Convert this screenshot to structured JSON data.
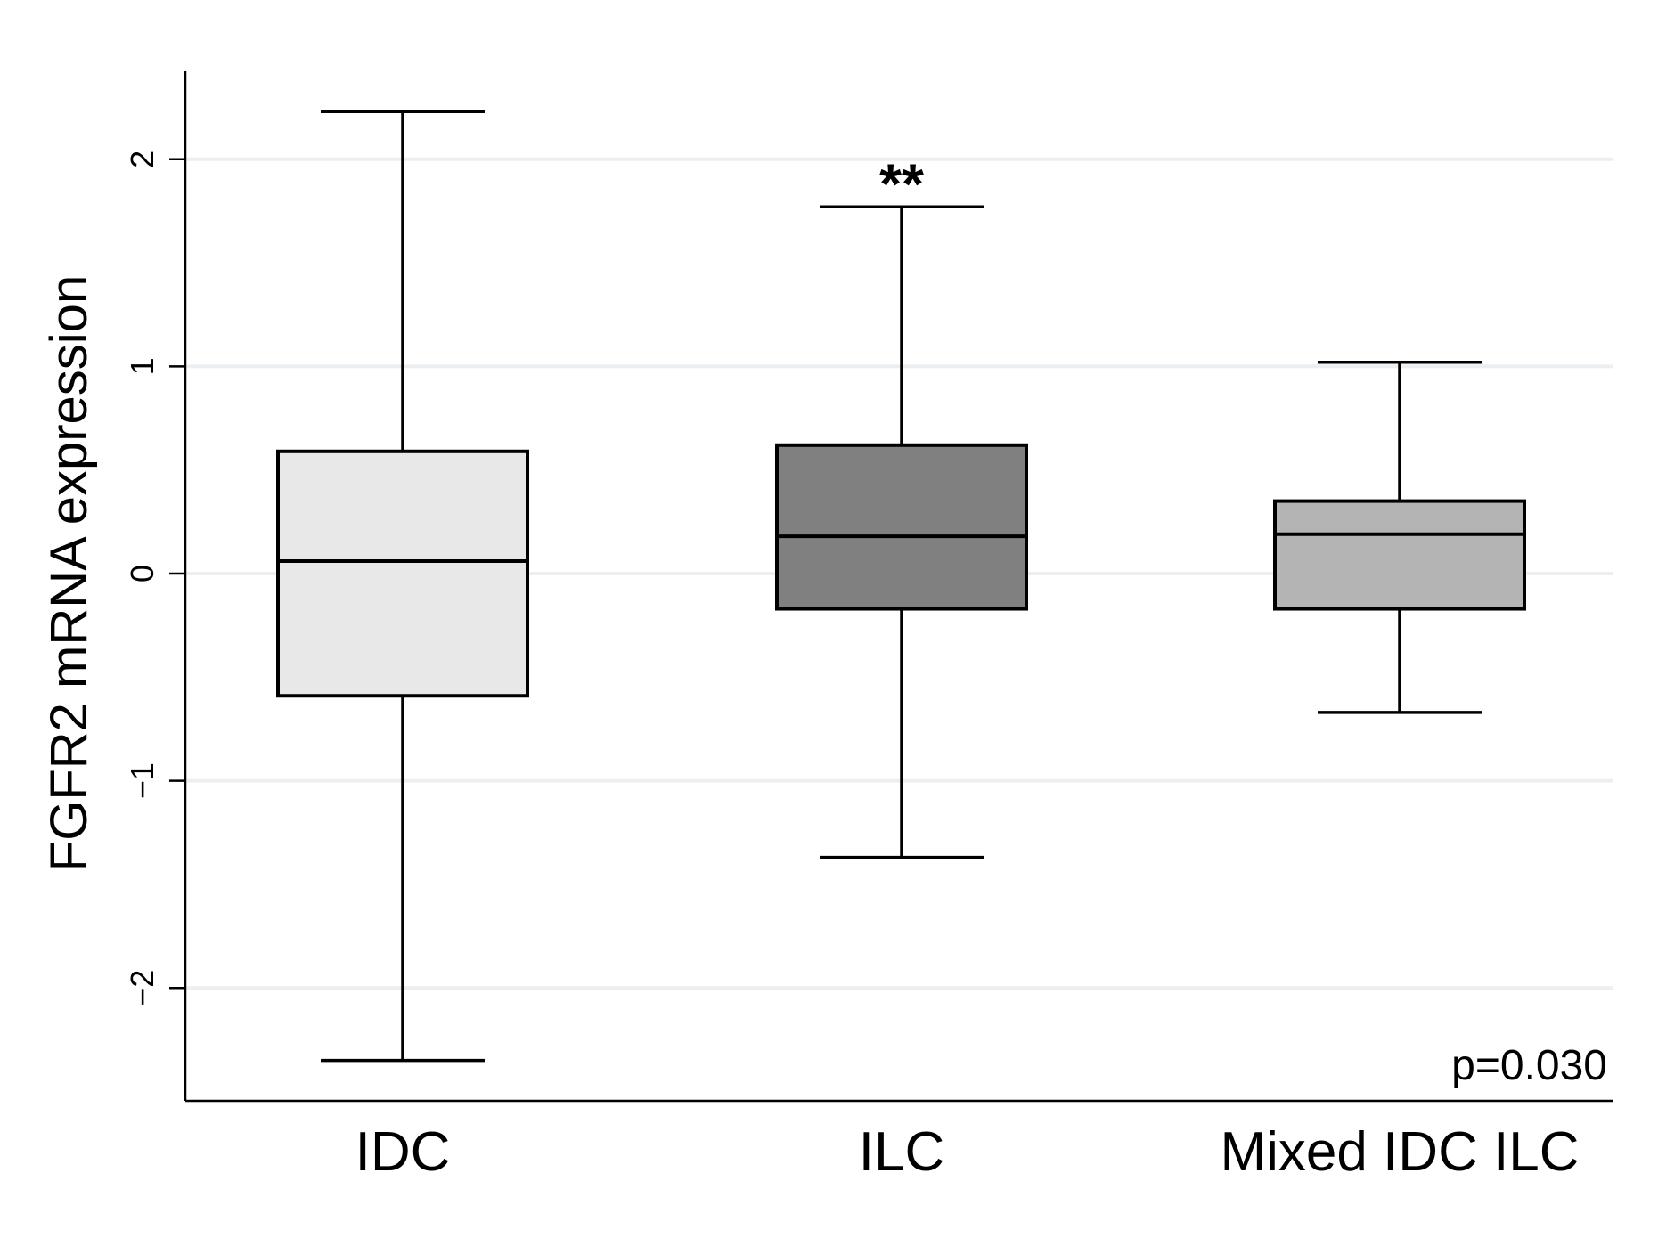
{
  "chart_data": {
    "type": "box",
    "title": "",
    "xlabel": "",
    "ylabel": "FGFR2 mRNA expression",
    "ylim": [
      -2.5,
      2.42
    ],
    "yticks": [
      -2,
      -1,
      0,
      1,
      2
    ],
    "ytick_labels": [
      "−2",
      "−1",
      "0",
      "1",
      "2"
    ],
    "grid": true,
    "categories": [
      "IDC",
      "ILC",
      "Mixed IDC ILC"
    ],
    "boxes": [
      {
        "name": "IDC",
        "whisker_low": -2.35,
        "q1": -0.59,
        "median": 0.06,
        "q3": 0.59,
        "whisker_high": 2.23,
        "fill": "#e8e8e8",
        "annotation": ""
      },
      {
        "name": "ILC",
        "whisker_low": -1.37,
        "q1": -0.17,
        "median": 0.18,
        "q3": 0.62,
        "whisker_high": 1.77,
        "fill": "#808080",
        "annotation": "**"
      },
      {
        "name": "Mixed IDC ILC",
        "whisker_low": -0.67,
        "q1": -0.17,
        "median": 0.19,
        "q3": 0.35,
        "whisker_high": 1.02,
        "fill": "#b4b4b4",
        "annotation": ""
      }
    ],
    "annotation_text": "p=0.030"
  }
}
